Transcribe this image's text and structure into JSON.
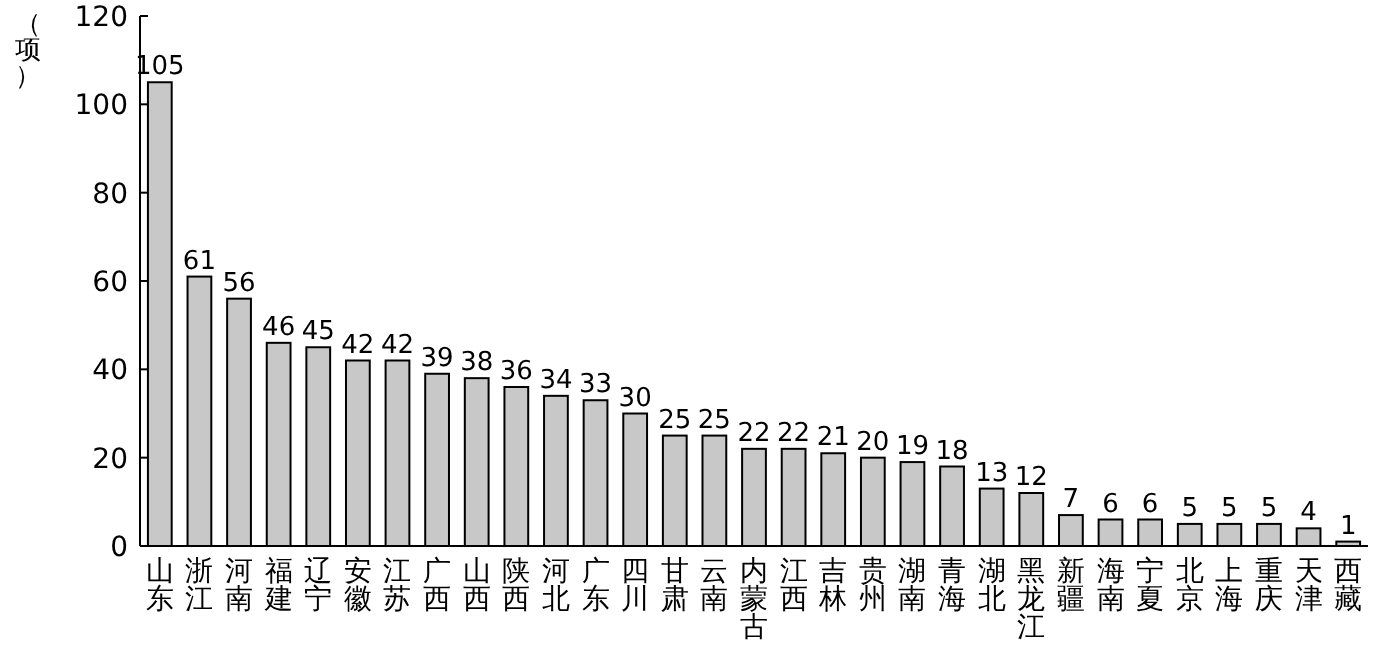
{
  "chart_data": {
    "type": "bar",
    "ylabel": "（项）",
    "categories": [
      "山东",
      "浙江",
      "河南",
      "福建",
      "辽宁",
      "安徽",
      "江苏",
      "广西",
      "山西",
      "陕西",
      "河北",
      "广东",
      "四川",
      "甘肃",
      "云南",
      "内蒙古",
      "江西",
      "吉林",
      "贵州",
      "湖南",
      "青海",
      "湖北",
      "黑龙江",
      "新疆",
      "海南",
      "宁夏",
      "北京",
      "上海",
      "重庆",
      "天津",
      "西藏"
    ],
    "values": [
      105,
      61,
      56,
      46,
      45,
      42,
      42,
      39,
      38,
      36,
      34,
      33,
      30,
      25,
      25,
      22,
      22,
      21,
      20,
      19,
      18,
      13,
      12,
      7,
      6,
      6,
      5,
      5,
      5,
      4,
      1
    ],
    "color": "#c8c8c8",
    "ylim": [
      0,
      120
    ],
    "yticks": [
      0,
      20,
      40,
      60,
      80,
      100,
      120
    ],
    "data_labels": true
  }
}
